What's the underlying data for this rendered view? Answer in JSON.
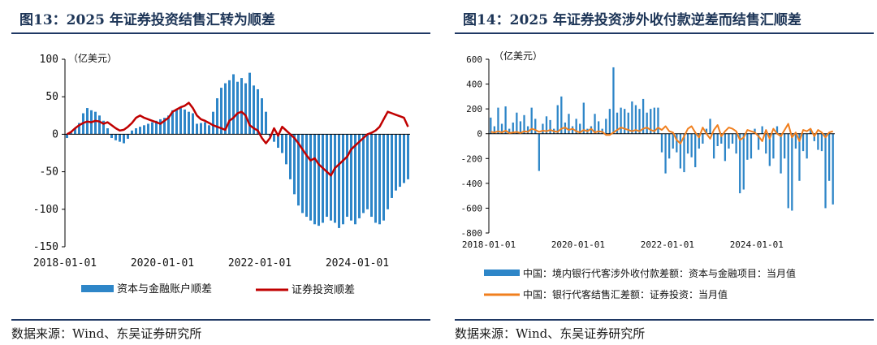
{
  "colors": {
    "bar": "#2E86C8",
    "left_line": "#C00000",
    "right_line": "#F07F1E",
    "title": "#1d3557"
  },
  "left": {
    "title": "图13：2025 年证券投资结售汇转为顺差",
    "source": "数据来源：Wind、东吴证券研究所",
    "unit": "（亿美元）",
    "legend": [
      "资本与金融账户顺差",
      "证券投资顺差"
    ]
  },
  "right": {
    "title": "图14：2025 年证券投资涉外收付款逆差而结售汇顺差",
    "source": "数据来源：Wind、东吴证券研究所",
    "unit": "（亿美元）",
    "legend": [
      "中国：境内银行代客涉外收付款差额：资本与金融项目：当月值",
      "中国：银行代客结售汇差额：证券投资：当月值"
    ]
  },
  "chart_data": [
    {
      "type": "bar",
      "title": "图13：2025 年证券投资结售汇转为顺差",
      "ylabel": "（亿美元）",
      "ylim": [
        -150,
        100
      ],
      "yticks": [
        100,
        50,
        0,
        -50,
        -100,
        -150
      ],
      "xticks": [
        "2018-01-01",
        "2020-01-01",
        "2022-01-01",
        "2024-01-01"
      ],
      "start": "2018-01",
      "legend_position": "bottom",
      "series": [
        {
          "name": "资本与金融账户顺差",
          "type": "bar",
          "values": [
            -5,
            2,
            8,
            15,
            28,
            35,
            32,
            30,
            25,
            18,
            8,
            -5,
            -8,
            -10,
            -12,
            -6,
            5,
            8,
            10,
            12,
            14,
            16,
            18,
            20,
            22,
            25,
            32,
            34,
            35,
            33,
            30,
            28,
            14,
            15,
            16,
            12,
            30,
            48,
            62,
            68,
            72,
            80,
            70,
            75,
            68,
            82,
            65,
            60,
            48,
            30,
            -3,
            -10,
            -18,
            -25,
            -40,
            -60,
            -80,
            -95,
            -105,
            -110,
            -115,
            -120,
            -122,
            -118,
            -110,
            -115,
            -118,
            -125,
            -120,
            -110,
            -115,
            -120,
            -112,
            -105,
            -100,
            -110,
            -118,
            -120,
            -115,
            -100,
            -85,
            -75,
            -70,
            -65,
            -60
          ]
        },
        {
          "name": "证券投资顺差",
          "type": "line",
          "values": [
            0,
            3,
            8,
            12,
            15,
            17,
            16,
            18,
            17,
            14,
            16,
            12,
            8,
            5,
            6,
            10,
            15,
            22,
            25,
            22,
            20,
            18,
            16,
            14,
            18,
            22,
            30,
            33,
            36,
            38,
            42,
            35,
            25,
            20,
            18,
            15,
            12,
            10,
            8,
            6,
            18,
            22,
            28,
            30,
            25,
            12,
            8,
            5,
            -5,
            -12,
            -5,
            8,
            -2,
            10,
            5,
            0,
            -5,
            -12,
            -20,
            -28,
            -35,
            -32,
            -40,
            -45,
            -50,
            -55,
            -45,
            -40,
            -35,
            -30,
            -20,
            -15,
            -10,
            -5,
            0,
            2,
            5,
            10,
            20,
            30,
            28,
            26,
            24,
            22,
            10
          ]
        }
      ]
    },
    {
      "type": "bar",
      "title": "图14：2025 年证券投资涉外收付款逆差而结售汇顺差",
      "ylabel": "（亿美元）",
      "ylim": [
        -800,
        600
      ],
      "yticks": [
        600,
        400,
        200,
        0,
        -200,
        -400,
        -600,
        -800
      ],
      "xticks": [
        "2018-01-01",
        "2020-01-01",
        "2022-01-01",
        "2024-01-01"
      ],
      "start": "2018-01",
      "legend_position": "bottom",
      "series": [
        {
          "name": "中国：境内银行代客涉外收付款差额：资本与金融项目：当月值",
          "type": "bar",
          "values": [
            130,
            60,
            210,
            80,
            220,
            40,
            90,
            170,
            100,
            150,
            60,
            210,
            120,
            -300,
            80,
            140,
            110,
            40,
            230,
            300,
            90,
            160,
            60,
            120,
            80,
            250,
            40,
            60,
            160,
            100,
            40,
            120,
            200,
            535,
            170,
            210,
            200,
            170,
            260,
            230,
            200,
            280,
            170,
            200,
            210,
            210,
            -150,
            -320,
            -200,
            -120,
            -150,
            -280,
            -310,
            -160,
            -190,
            -270,
            -120,
            -80,
            40,
            120,
            -200,
            -100,
            -80,
            -220,
            -120,
            -80,
            -160,
            -480,
            -450,
            -210,
            -200,
            40,
            -130,
            60,
            -160,
            -260,
            -200,
            60,
            -320,
            -200,
            -600,
            -620,
            -120,
            -380,
            -140,
            -200,
            30,
            -60,
            -130,
            -140,
            -600,
            -380,
            -570
          ]
        },
        {
          "name": "中国：银行代客结售汇差额：证券投资：当月值",
          "type": "line",
          "values": [
            15,
            10,
            20,
            10,
            25,
            5,
            10,
            15,
            5,
            20,
            15,
            40,
            30,
            15,
            25,
            20,
            30,
            20,
            15,
            40,
            50,
            30,
            40,
            20,
            10,
            30,
            20,
            40,
            10,
            20,
            15,
            -10,
            -10,
            10,
            30,
            50,
            40,
            30,
            20,
            30,
            20,
            40,
            50,
            30,
            20,
            50,
            30,
            60,
            20,
            10,
            -50,
            -80,
            -20,
            40,
            60,
            10,
            -30,
            50,
            0,
            -40,
            30,
            70,
            -20,
            20,
            50,
            40,
            20,
            -50,
            -30,
            30,
            20,
            10,
            -20,
            -60,
            30,
            -40,
            40,
            0,
            -20,
            30,
            80,
            -30,
            10,
            -60,
            30,
            20,
            40,
            -20,
            30,
            10,
            -30,
            10,
            20
          ]
        }
      ]
    }
  ]
}
